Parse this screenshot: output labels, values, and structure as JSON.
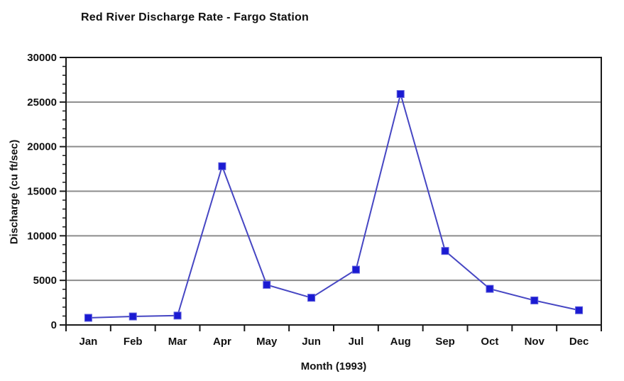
{
  "chart_data": {
    "type": "line",
    "title": "Red River Discharge Rate - Fargo Station",
    "xlabel": "Month (1993)",
    "ylabel": "Discharge (cu ft/sec)",
    "categories": [
      "Jan",
      "Feb",
      "Mar",
      "Apr",
      "May",
      "Jun",
      "Jul",
      "Aug",
      "Sep",
      "Oct",
      "Nov",
      "Dec"
    ],
    "series": [
      {
        "name": "Discharge",
        "values": [
          800,
          950,
          1050,
          17800,
          4500,
          3050,
          6200,
          25900,
          8300,
          4050,
          2750,
          1650
        ]
      }
    ],
    "ylim": [
      0,
      30000
    ],
    "y_major_step": 5000,
    "y_minor_step": 1000,
    "y_tick_labels": [
      "0",
      "5000",
      "10000",
      "15000",
      "20000",
      "25000",
      "30000"
    ],
    "grid": "horizontal-major",
    "legend": "none",
    "marker": "square",
    "colors": {
      "line": "#4646c3",
      "marker_fill": "#1a1ad2",
      "marker_edge": "#6060dd",
      "grid": "#8c8c8c",
      "axis": "#1a1a1a",
      "text": "#111111"
    }
  }
}
